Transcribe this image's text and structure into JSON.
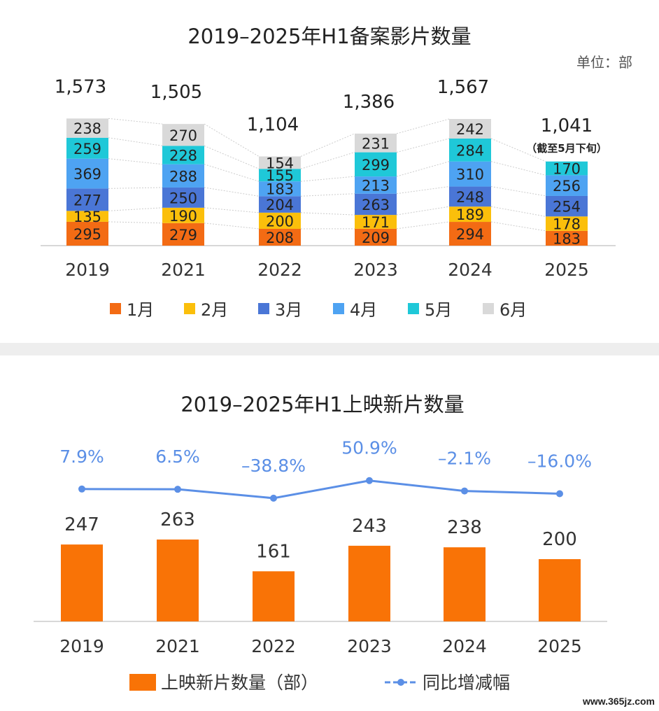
{
  "colors": {
    "jan": "#F36B14",
    "feb": "#FBBF0B",
    "mar": "#4A76D6",
    "apr": "#4EA3F2",
    "may": "#1FC8D8",
    "jun": "#D9D9D9",
    "bar": "#F97306",
    "line": "#5B8FE6"
  },
  "chart_data": [
    {
      "type": "bar",
      "stacked": true,
      "title": "2019–2025年H1备案影片数量",
      "unit_label": "单位：部",
      "categories": [
        "2019",
        "2021",
        "2022",
        "2023",
        "2024",
        "2025"
      ],
      "series": [
        {
          "name": "1月",
          "values": [
            295,
            279,
            208,
            209,
            294,
            183
          ]
        },
        {
          "name": "2月",
          "values": [
            135,
            190,
            200,
            171,
            189,
            178
          ]
        },
        {
          "name": "3月",
          "values": [
            277,
            250,
            204,
            263,
            248,
            254
          ]
        },
        {
          "name": "4月",
          "values": [
            369,
            288,
            183,
            213,
            310,
            256
          ]
        },
        {
          "name": "5月",
          "values": [
            259,
            228,
            155,
            299,
            284,
            170
          ]
        },
        {
          "name": "6月",
          "values": [
            238,
            270,
            154,
            231,
            242,
            null
          ]
        }
      ],
      "totals": [
        "1,573",
        "1,505",
        "1,104",
        "1,386",
        "1,567",
        "1,041"
      ],
      "total_note": "（截至5月下旬）"
    },
    {
      "type": "bar+line",
      "title": "2019–2025年H1上映新片数量",
      "categories": [
        "2019",
        "2021",
        "2022",
        "2023",
        "2024",
        "2025"
      ],
      "series": [
        {
          "name": "上映新片数量（部）",
          "type": "bar",
          "values": [
            247,
            263,
            161,
            243,
            238,
            200
          ]
        },
        {
          "name": "同比增减幅",
          "type": "line",
          "values": [
            7.9,
            6.5,
            -38.8,
            50.9,
            -2.1,
            -16.0
          ],
          "labels": [
            "7.9%",
            "6.5%",
            "–38.8%",
            "50.9%",
            "–2.1%",
            "–16.0%"
          ]
        }
      ]
    }
  ],
  "watermark": "www.365jz.com"
}
